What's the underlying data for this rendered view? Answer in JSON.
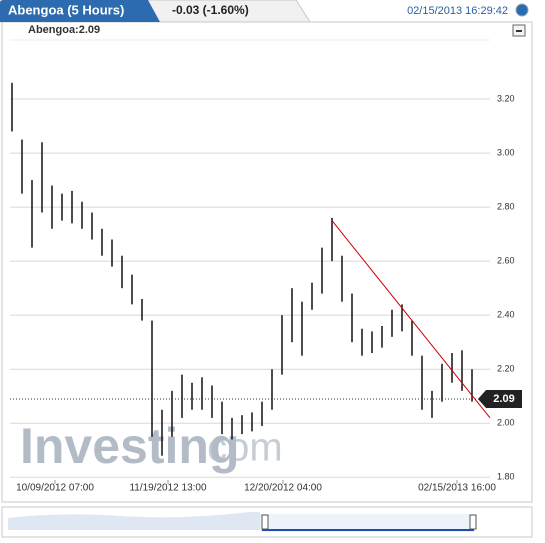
{
  "header": {
    "tab": "Abengoa (5 Hours)",
    "change": "-0.03 (-1.60%)",
    "timestamp": "02/15/2013 16:29:42"
  },
  "chart_data": {
    "type": "ohlc",
    "legend": "Abengoa:2.09",
    "x": [
      0,
      1,
      2,
      3,
      4,
      5,
      6,
      7,
      8,
      9,
      10,
      11,
      12,
      13,
      14,
      15,
      16,
      17,
      18,
      19,
      20,
      21,
      22,
      23,
      24,
      25,
      26,
      27,
      28,
      29,
      30,
      31,
      32,
      33,
      34,
      35,
      36,
      37,
      38,
      39,
      40,
      41,
      42,
      43,
      44,
      45,
      46
    ],
    "series": [
      {
        "name": "Abengoa",
        "color": "#111111",
        "low": [
          3.08,
          2.85,
          2.65,
          2.78,
          2.72,
          2.75,
          2.74,
          2.72,
          2.68,
          2.62,
          2.58,
          2.5,
          2.44,
          2.38,
          1.95,
          1.88,
          1.95,
          2.02,
          2.05,
          2.05,
          2.02,
          1.96,
          1.94,
          1.96,
          1.97,
          1.99,
          2.05,
          2.18,
          2.3,
          2.25,
          2.42,
          2.48,
          2.6,
          2.45,
          2.3,
          2.25,
          2.26,
          2.28,
          2.32,
          2.34,
          2.25,
          2.05,
          2.02,
          2.08,
          2.15,
          2.12,
          2.08
        ],
        "high": [
          3.26,
          3.05,
          2.9,
          3.04,
          2.88,
          2.85,
          2.86,
          2.82,
          2.78,
          2.72,
          2.68,
          2.62,
          2.55,
          2.46,
          2.38,
          2.05,
          2.12,
          2.18,
          2.15,
          2.17,
          2.14,
          2.08,
          2.02,
          2.03,
          2.04,
          2.08,
          2.2,
          2.4,
          2.5,
          2.45,
          2.52,
          2.65,
          2.76,
          2.62,
          2.48,
          2.35,
          2.34,
          2.36,
          2.42,
          2.44,
          2.38,
          2.25,
          2.12,
          2.22,
          2.26,
          2.27,
          2.2
        ]
      }
    ],
    "trend_line": {
      "x": [
        32,
        47.8
      ],
      "values": [
        2.75,
        2.02
      ],
      "color": "#cc0000"
    },
    "last_value": 2.09,
    "xlim": [
      -0.2,
      47.8
    ],
    "ylim": [
      1.79,
      3.4
    ],
    "xticks": [
      {
        "value": 4.3,
        "label": "10/09/2012 07:00"
      },
      {
        "value": 15.6,
        "label": "11/19/2012 13:00"
      },
      {
        "value": 27.1,
        "label": "12/20/2012 04:00"
      },
      {
        "value": 44.5,
        "label": "02/15/2013 16:00"
      }
    ],
    "yticks": [
      {
        "value": 1.8,
        "label": "1.80"
      },
      {
        "value": 2,
        "label": "2.00"
      },
      {
        "value": 2.2,
        "label": "2.20"
      },
      {
        "value": 2.4,
        "label": "2.40"
      },
      {
        "value": 2.6,
        "label": "2.60"
      },
      {
        "value": 2.8,
        "label": "2.80"
      },
      {
        "value": 3,
        "label": "3.00"
      },
      {
        "value": 3.2,
        "label": "3.20"
      }
    ],
    "grid": true,
    "watermark": [
      "Investing",
      ".com"
    ]
  }
}
